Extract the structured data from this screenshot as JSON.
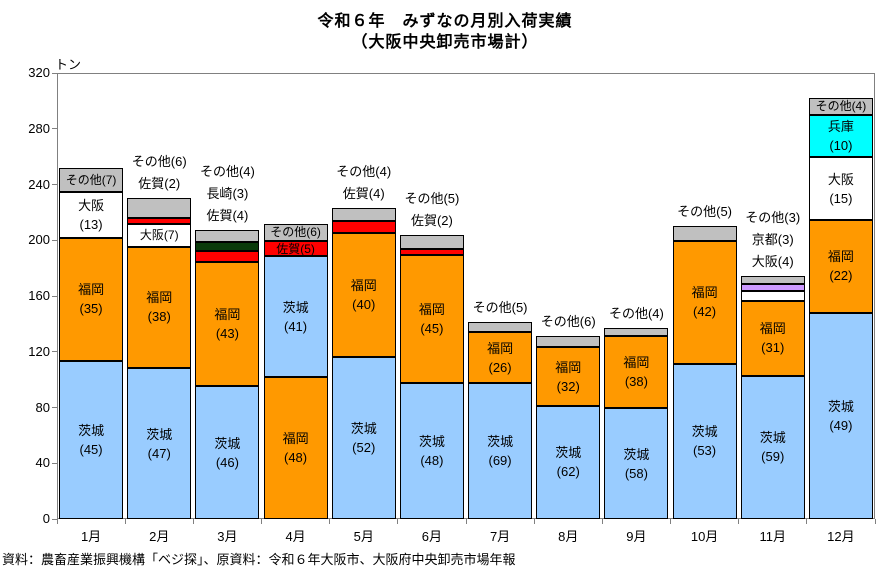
{
  "page": {
    "title_line1": "令和６年　みずなの月別入荷実績",
    "title_line2": "（大阪中央卸売市場計）",
    "source_note": "資料：農畜産業振興機構「ベジ探」、原資料：令和６年大阪市、大阪府中央卸売市場年報"
  },
  "chart_data": {
    "type": "stacked-bar",
    "title": "令和６年　みずなの月別入荷実績（大阪中央卸売市場計）",
    "unit_label": "トン",
    "y_axis": {
      "min": 0,
      "max": 320,
      "tick_step": 40,
      "ticks": [
        0,
        40,
        80,
        120,
        160,
        200,
        240,
        280,
        320
      ]
    },
    "x_categories": [
      "1月",
      "2月",
      "3月",
      "4月",
      "5月",
      "6月",
      "7月",
      "8月",
      "9月",
      "10月",
      "11月",
      "12月"
    ],
    "label_format": "prefecture(value)",
    "colors": {
      "茨城": "#99CCFF",
      "福岡": "#FF9900",
      "大阪": "#FFFFFF",
      "その他": "#C0C0C0",
      "佐賀": "#FF0000",
      "長崎": "#0A3A0A",
      "京都": "#CC99FF",
      "兵庫": "#00FFFF"
    },
    "months": [
      {
        "month": "1月",
        "total_tons": 252,
        "segments": [
          {
            "prefecture": "茨城",
            "value": 45,
            "placement": "inside",
            "lines": 2
          },
          {
            "prefecture": "福岡",
            "value": 35,
            "placement": "inside",
            "lines": 2
          },
          {
            "prefecture": "大阪",
            "value": 13,
            "placement": "inside",
            "lines": 2
          },
          {
            "prefecture": "その他",
            "value": 7,
            "placement": "inside",
            "lines": 1
          }
        ]
      },
      {
        "month": "2月",
        "total_tons": 230,
        "segments": [
          {
            "prefecture": "茨城",
            "value": 47,
            "placement": "inside",
            "lines": 2
          },
          {
            "prefecture": "福岡",
            "value": 38,
            "placement": "inside",
            "lines": 2
          },
          {
            "prefecture": "大阪",
            "value": 7,
            "placement": "inside",
            "lines": 1
          },
          {
            "prefecture": "佐賀",
            "value": 2,
            "placement": "outside",
            "lines": 1
          },
          {
            "prefecture": "その他",
            "value": 6,
            "placement": "outside",
            "lines": 1
          }
        ]
      },
      {
        "month": "3月",
        "total_tons": 207,
        "segments": [
          {
            "prefecture": "茨城",
            "value": 46,
            "placement": "inside",
            "lines": 2
          },
          {
            "prefecture": "福岡",
            "value": 43,
            "placement": "inside",
            "lines": 2
          },
          {
            "prefecture": "佐賀",
            "value": 4,
            "placement": "outside",
            "lines": 1
          },
          {
            "prefecture": "長崎",
            "value": 3,
            "placement": "outside",
            "lines": 1
          },
          {
            "prefecture": "その他",
            "value": 4,
            "placement": "outside",
            "lines": 1
          }
        ]
      },
      {
        "month": "4月",
        "total_tons": 212,
        "segments": [
          {
            "prefecture": "福岡",
            "value": 48,
            "placement": "inside",
            "lines": 2
          },
          {
            "prefecture": "茨城",
            "value": 41,
            "placement": "inside",
            "lines": 2
          },
          {
            "prefecture": "佐賀",
            "value": 5,
            "placement": "inside",
            "lines": 1
          },
          {
            "prefecture": "その他",
            "value": 6,
            "placement": "inside",
            "lines": 1
          }
        ]
      },
      {
        "month": "5月",
        "total_tons": 223,
        "segments": [
          {
            "prefecture": "茨城",
            "value": 52,
            "placement": "inside",
            "lines": 2
          },
          {
            "prefecture": "福岡",
            "value": 40,
            "placement": "inside",
            "lines": 2
          },
          {
            "prefecture": "佐賀",
            "value": 4,
            "placement": "outside",
            "lines": 1
          },
          {
            "prefecture": "その他",
            "value": 4,
            "placement": "outside",
            "lines": 1
          }
        ]
      },
      {
        "month": "6月",
        "total_tons": 204,
        "segments": [
          {
            "prefecture": "茨城",
            "value": 48,
            "placement": "inside",
            "lines": 2
          },
          {
            "prefecture": "福岡",
            "value": 45,
            "placement": "inside",
            "lines": 2
          },
          {
            "prefecture": "佐賀",
            "value": 2,
            "placement": "outside",
            "lines": 1
          },
          {
            "prefecture": "その他",
            "value": 5,
            "placement": "outside",
            "lines": 1
          }
        ]
      },
      {
        "month": "7月",
        "total_tons": 141,
        "segments": [
          {
            "prefecture": "茨城",
            "value": 69,
            "placement": "inside",
            "lines": 2
          },
          {
            "prefecture": "福岡",
            "value": 26,
            "placement": "inside",
            "lines": 2
          },
          {
            "prefecture": "その他",
            "value": 5,
            "placement": "outside",
            "lines": 1
          }
        ]
      },
      {
        "month": "8月",
        "total_tons": 131,
        "segments": [
          {
            "prefecture": "茨城",
            "value": 62,
            "placement": "inside",
            "lines": 2
          },
          {
            "prefecture": "福岡",
            "value": 32,
            "placement": "inside",
            "lines": 2
          },
          {
            "prefecture": "その他",
            "value": 6,
            "placement": "outside",
            "lines": 1
          }
        ]
      },
      {
        "month": "9月",
        "total_tons": 137,
        "segments": [
          {
            "prefecture": "茨城",
            "value": 58,
            "placement": "inside",
            "lines": 2
          },
          {
            "prefecture": "福岡",
            "value": 38,
            "placement": "inside",
            "lines": 2
          },
          {
            "prefecture": "その他",
            "value": 4,
            "placement": "outside",
            "lines": 1
          }
        ]
      },
      {
        "month": "10月",
        "total_tons": 210,
        "segments": [
          {
            "prefecture": "茨城",
            "value": 53,
            "placement": "inside",
            "lines": 2
          },
          {
            "prefecture": "福岡",
            "value": 42,
            "placement": "inside",
            "lines": 2
          },
          {
            "prefecture": "その他",
            "value": 5,
            "placement": "outside",
            "lines": 1
          }
        ]
      },
      {
        "month": "11月",
        "total_tons": 174,
        "segments": [
          {
            "prefecture": "茨城",
            "value": 59,
            "placement": "inside",
            "lines": 2
          },
          {
            "prefecture": "福岡",
            "value": 31,
            "placement": "inside",
            "lines": 2
          },
          {
            "prefecture": "大阪",
            "value": 4,
            "placement": "outside",
            "lines": 1
          },
          {
            "prefecture": "京都",
            "value": 3,
            "placement": "outside",
            "lines": 1
          },
          {
            "prefecture": "その他",
            "value": 3,
            "placement": "outside",
            "lines": 1
          }
        ]
      },
      {
        "month": "12月",
        "total_tons": 302,
        "segments": [
          {
            "prefecture": "茨城",
            "value": 49,
            "placement": "inside",
            "lines": 2
          },
          {
            "prefecture": "福岡",
            "value": 22,
            "placement": "inside",
            "lines": 2
          },
          {
            "prefecture": "大阪",
            "value": 15,
            "placement": "inside",
            "lines": 2
          },
          {
            "prefecture": "兵庫",
            "value": 10,
            "placement": "inside",
            "lines": 2
          },
          {
            "prefecture": "その他",
            "value": 4,
            "placement": "inside",
            "lines": 1
          }
        ]
      }
    ]
  }
}
